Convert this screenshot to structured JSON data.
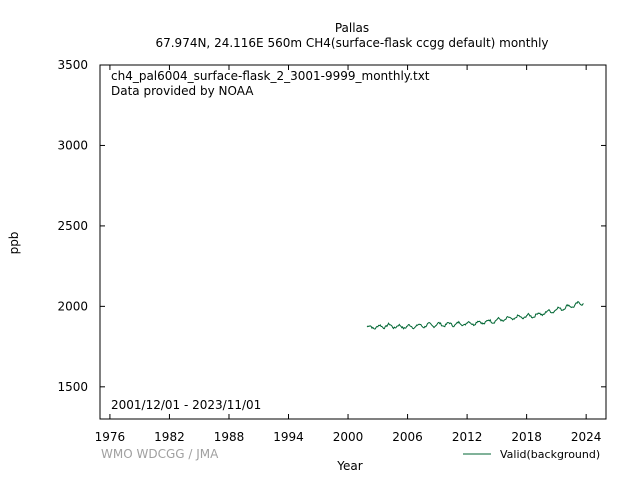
{
  "chart_data": {
    "type": "line",
    "title": "Pallas",
    "subtitle": "67.974N, 24.116E 560m    CH4(surface-flask ccgg default) monthly",
    "xlabel": "Year",
    "ylabel": "ppb",
    "xlim": [
      1975,
      2026
    ],
    "ylim": [
      1300,
      3500
    ],
    "x_ticks": [
      "1976",
      "1982",
      "1988",
      "1994",
      "2000",
      "2006",
      "2012",
      "2018",
      "2024"
    ],
    "y_ticks": [
      "1500",
      "2000",
      "2500",
      "3000",
      "3500"
    ],
    "annotations": {
      "file": "ch4_pal6004_surface-flask_2_3001-9999_monthly.txt",
      "provider": "Data provided by NOAA",
      "period": "2001/12/01 - 2023/11/01",
      "watermark": "WMO WDCGG / JMA"
    },
    "grid": false,
    "legend_position": "bottom-right",
    "series": [
      {
        "name": "Valid(background)",
        "color": "#006633",
        "x": [
          2002.0,
          2003.0,
          2004.0,
          2005.0,
          2006.0,
          2007.0,
          2008.0,
          2009.0,
          2010.0,
          2011.0,
          2012.0,
          2013.0,
          2014.0,
          2015.0,
          2016.0,
          2017.0,
          2018.0,
          2019.0,
          2020.0,
          2021.0,
          2022.0,
          2023.0,
          2023.8
        ],
        "values": [
          1870,
          1872,
          1880,
          1874,
          1873,
          1878,
          1882,
          1886,
          1888,
          1890,
          1894,
          1898,
          1904,
          1913,
          1921,
          1930,
          1937,
          1946,
          1962,
          1979,
          1995,
          2010,
          2025
        ],
        "amplitude": 18
      }
    ]
  }
}
